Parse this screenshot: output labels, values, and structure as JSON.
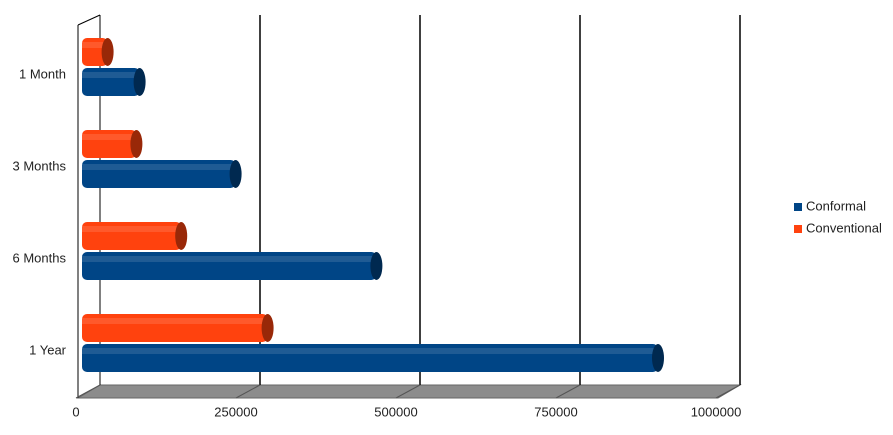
{
  "chart_data": {
    "type": "bar",
    "orientation": "horizontal",
    "categories": [
      "1 Month",
      "3 Months",
      "6 Months",
      "1 Year"
    ],
    "series": [
      {
        "name": "Conventional",
        "color": "#ff420e",
        "values": [
          40000,
          85000,
          155000,
          290000
        ]
      },
      {
        "name": "Conformal",
        "color": "#004586",
        "values": [
          90000,
          240000,
          460000,
          900000
        ]
      }
    ],
    "xlim": [
      0,
      1000000
    ],
    "xticks": [
      0,
      250000,
      500000,
      750000,
      1000000
    ],
    "grid": true,
    "legend": "right"
  }
}
